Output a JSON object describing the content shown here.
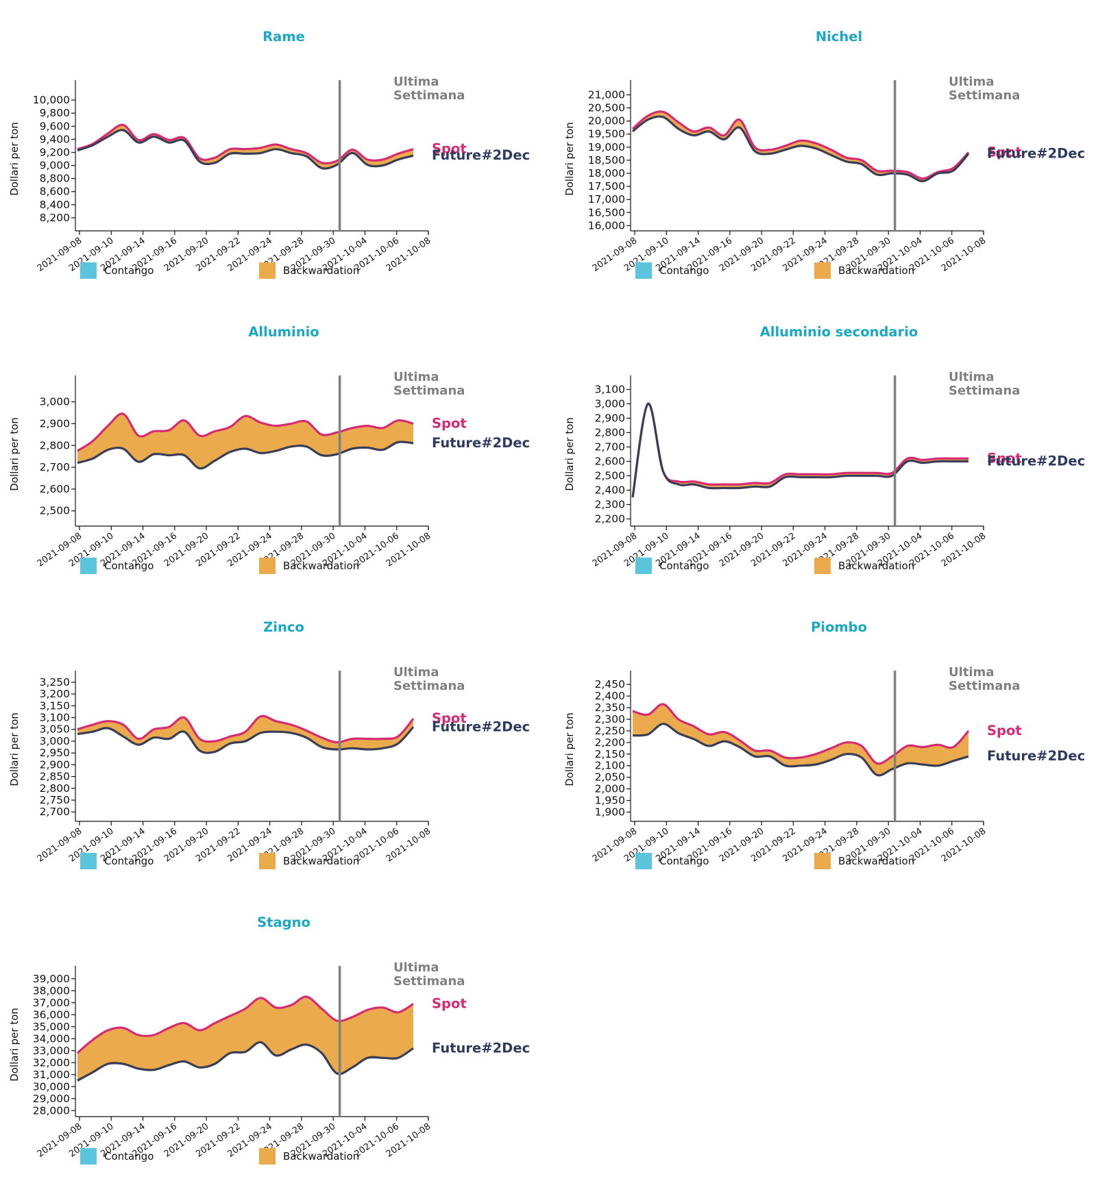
{
  "page": {
    "week_label": [
      "Ultima",
      "Settimana"
    ],
    "y_label": "Dollari per ton",
    "spot_label": "Spot",
    "future_label": "Future#2Dec",
    "legend": [
      {
        "name": "contango",
        "label": "Contango",
        "color": "#5ac5dc"
      },
      {
        "name": "backwardation",
        "label": "Backwardation",
        "color": "#ebab4d"
      }
    ],
    "colors": {
      "title": "#1aa8c4",
      "week": "#808080",
      "spot": "#d62a73",
      "future": "#2e3b5e",
      "future_line": "#3a3d56",
      "backwardation": "#ebab4d",
      "contango": "#5ac5dc",
      "marker": "#808080"
    }
  },
  "chart_data": [
    {
      "type": "area",
      "title": "Rame",
      "xlabel": "",
      "ylabel": "Dollari per ton",
      "x_tick_labels": [
        "2021-09-08",
        "2021-09-10",
        "2021-09-14",
        "2021-09-16",
        "2021-09-20",
        "2021-09-22",
        "2021-09-24",
        "2021-09-28",
        "2021-09-30",
        "2021-10-04",
        "2021-10-06",
        "2021-10-08"
      ],
      "y_ticks": [
        8200,
        8400,
        8600,
        8800,
        9000,
        9200,
        9400,
        9600,
        9800,
        10000
      ],
      "ylim": [
        8000,
        10200
      ],
      "last_week_start_index": 17,
      "series": [
        {
          "name": "Spot",
          "values": [
            9250,
            9330,
            9490,
            9620,
            9390,
            9480,
            9390,
            9420,
            9110,
            9120,
            9250,
            9250,
            9270,
            9320,
            9250,
            9190,
            9040,
            9070,
            9240,
            9090,
            9090,
            9180,
            9250
          ]
        },
        {
          "name": "Future#2Dec",
          "values": [
            9230,
            9310,
            9440,
            9540,
            9350,
            9440,
            9350,
            9380,
            9060,
            9040,
            9180,
            9180,
            9190,
            9250,
            9190,
            9140,
            8960,
            9010,
            9190,
            9010,
            9000,
            9090,
            9150
          ]
        }
      ]
    },
    {
      "type": "area",
      "title": "Nichel",
      "xlabel": "",
      "ylabel": "Dollari per ton",
      "x_tick_labels": [
        "2021-09-08",
        "2021-09-10",
        "2021-09-14",
        "2021-09-16",
        "2021-09-20",
        "2021-09-22",
        "2021-09-24",
        "2021-09-28",
        "2021-09-30",
        "2021-10-04",
        "2021-10-06",
        "2021-10-08"
      ],
      "y_ticks": [
        16000,
        16500,
        17000,
        17500,
        18000,
        18500,
        19000,
        19500,
        20000,
        20500,
        21000
      ],
      "ylim": [
        15800,
        21300
      ],
      "last_week_start_index": 17,
      "series": [
        {
          "name": "Spot",
          "values": [
            19700,
            20200,
            20350,
            19950,
            19600,
            19750,
            19450,
            20050,
            19000,
            18900,
            19050,
            19250,
            19150,
            18900,
            18600,
            18500,
            18100,
            18100,
            18050,
            17800,
            18050,
            18200,
            18800
          ]
        },
        {
          "name": "Future#2Dec",
          "values": [
            19600,
            20050,
            20150,
            19700,
            19450,
            19600,
            19300,
            19750,
            18850,
            18750,
            18900,
            19050,
            18950,
            18700,
            18450,
            18350,
            17950,
            18000,
            17950,
            17700,
            18000,
            18100,
            18750
          ]
        }
      ]
    },
    {
      "type": "area",
      "title": "Alluminio",
      "xlabel": "",
      "ylabel": "Dollari per ton",
      "x_tick_labels": [
        "2021-09-08",
        "2021-09-10",
        "2021-09-14",
        "2021-09-16",
        "2021-09-20",
        "2021-09-22",
        "2021-09-24",
        "2021-09-28",
        "2021-09-30",
        "2021-10-04",
        "2021-10-06",
        "2021-10-08"
      ],
      "y_ticks": [
        2500,
        2600,
        2700,
        2800,
        2900,
        3000
      ],
      "ylim": [
        2430,
        3090
      ],
      "last_week_start_index": 17,
      "series": [
        {
          "name": "Spot",
          "values": [
            2775,
            2820,
            2890,
            2945,
            2845,
            2865,
            2870,
            2915,
            2845,
            2865,
            2885,
            2935,
            2905,
            2890,
            2900,
            2910,
            2850,
            2860,
            2880,
            2890,
            2880,
            2915,
            2900
          ]
        },
        {
          "name": "Future#2Dec",
          "values": [
            2720,
            2740,
            2780,
            2785,
            2725,
            2760,
            2755,
            2755,
            2695,
            2730,
            2770,
            2785,
            2765,
            2775,
            2795,
            2795,
            2755,
            2760,
            2785,
            2790,
            2780,
            2815,
            2810
          ]
        }
      ]
    },
    {
      "type": "area",
      "title": "Alluminio secondario",
      "xlabel": "",
      "ylabel": "Dollari per ton",
      "x_tick_labels": [
        "2021-09-08",
        "2021-09-10",
        "2021-09-14",
        "2021-09-16",
        "2021-09-20",
        "2021-09-22",
        "2021-09-24",
        "2021-09-28",
        "2021-09-30",
        "2021-10-04",
        "2021-10-06",
        "2021-10-08"
      ],
      "y_ticks": [
        2200,
        2300,
        2400,
        2500,
        2600,
        2700,
        2800,
        2900,
        3000,
        3100
      ],
      "ylim": [
        2150,
        3150
      ],
      "last_week_start_index": 17,
      "series": [
        {
          "name": "Spot",
          "values": [
            2350,
            3000,
            2530,
            2460,
            2460,
            2440,
            2440,
            2440,
            2450,
            2450,
            2510,
            2510,
            2510,
            2510,
            2520,
            2520,
            2520,
            2520,
            2620,
            2610,
            2620,
            2620,
            2620
          ]
        },
        {
          "name": "Future#2Dec",
          "values": [
            2350,
            3000,
            2530,
            2440,
            2440,
            2415,
            2415,
            2415,
            2425,
            2425,
            2490,
            2490,
            2490,
            2490,
            2500,
            2500,
            2500,
            2500,
            2600,
            2590,
            2600,
            2600,
            2600
          ]
        }
      ]
    },
    {
      "type": "area",
      "title": "Zinco",
      "xlabel": "",
      "ylabel": "Dollari per ton",
      "x_tick_labels": [
        "2021-09-08",
        "2021-09-10",
        "2021-09-14",
        "2021-09-16",
        "2021-09-20",
        "2021-09-22",
        "2021-09-24",
        "2021-09-28",
        "2021-09-30",
        "2021-10-04",
        "2021-10-06",
        "2021-10-08"
      ],
      "y_ticks": [
        2700,
        2750,
        2800,
        2850,
        2900,
        2950,
        3000,
        3050,
        3100,
        3150,
        3200,
        3250
      ],
      "ylim": [
        2660,
        3270
      ],
      "last_week_start_index": 17,
      "series": [
        {
          "name": "Spot",
          "values": [
            3050,
            3070,
            3085,
            3070,
            3010,
            3050,
            3060,
            3100,
            3010,
            3000,
            3020,
            3040,
            3105,
            3085,
            3070,
            3045,
            3015,
            2995,
            3010,
            3010,
            3010,
            3020,
            3095
          ]
        },
        {
          "name": "Future#2Dec",
          "values": [
            3030,
            3040,
            3055,
            3020,
            2985,
            3015,
            3010,
            3040,
            2960,
            2955,
            2990,
            3000,
            3035,
            3040,
            3035,
            3015,
            2975,
            2965,
            2970,
            2965,
            2970,
            2990,
            3060
          ]
        }
      ]
    },
    {
      "type": "area",
      "title": "Piombo",
      "xlabel": "",
      "ylabel": "Dollari per ton",
      "x_tick_labels": [
        "2021-09-08",
        "2021-09-10",
        "2021-09-14",
        "2021-09-16",
        "2021-09-20",
        "2021-09-22",
        "2021-09-24",
        "2021-09-28",
        "2021-09-30",
        "2021-10-04",
        "2021-10-06",
        "2021-10-08"
      ],
      "y_ticks": [
        1900,
        1950,
        2000,
        2050,
        2100,
        2150,
        2200,
        2250,
        2300,
        2350,
        2400,
        2450
      ],
      "ylim": [
        1860,
        2480
      ],
      "last_week_start_index": 17,
      "series": [
        {
          "name": "Spot",
          "values": [
            2335,
            2320,
            2365,
            2300,
            2270,
            2235,
            2245,
            2210,
            2165,
            2165,
            2135,
            2135,
            2150,
            2175,
            2200,
            2185,
            2110,
            2140,
            2185,
            2180,
            2190,
            2180,
            2250
          ]
        },
        {
          "name": "Future#2Dec",
          "values": [
            2230,
            2235,
            2280,
            2240,
            2215,
            2185,
            2205,
            2180,
            2140,
            2140,
            2100,
            2100,
            2105,
            2125,
            2150,
            2135,
            2060,
            2085,
            2110,
            2105,
            2100,
            2120,
            2140
          ]
        }
      ]
    },
    {
      "type": "area",
      "title": "Stagno",
      "xlabel": "",
      "ylabel": "Dollari per ton",
      "x_tick_labels": [
        "2021-09-08",
        "2021-09-10",
        "2021-09-14",
        "2021-09-16",
        "2021-09-20",
        "2021-09-22",
        "2021-09-24",
        "2021-09-28",
        "2021-09-30",
        "2021-10-04",
        "2021-10-06",
        "2021-10-08"
      ],
      "y_ticks": [
        28000,
        29000,
        30000,
        31000,
        32000,
        33000,
        34000,
        35000,
        36000,
        37000,
        38000,
        39000
      ],
      "ylim": [
        27500,
        39500
      ],
      "last_week_start_index": 17,
      "series": [
        {
          "name": "Spot",
          "values": [
            32800,
            33900,
            34700,
            34900,
            34300,
            34300,
            34900,
            35300,
            34700,
            35300,
            35900,
            36500,
            37400,
            36600,
            36800,
            37500,
            36500,
            35500,
            35800,
            36400,
            36600,
            36200,
            36900
          ]
        },
        {
          "name": "Future#2Dec",
          "values": [
            30500,
            31200,
            31900,
            31900,
            31500,
            31400,
            31800,
            32100,
            31600,
            31900,
            32800,
            32900,
            33700,
            32600,
            33100,
            33500,
            32800,
            31100,
            31600,
            32400,
            32400,
            32400,
            33200
          ]
        }
      ]
    }
  ]
}
